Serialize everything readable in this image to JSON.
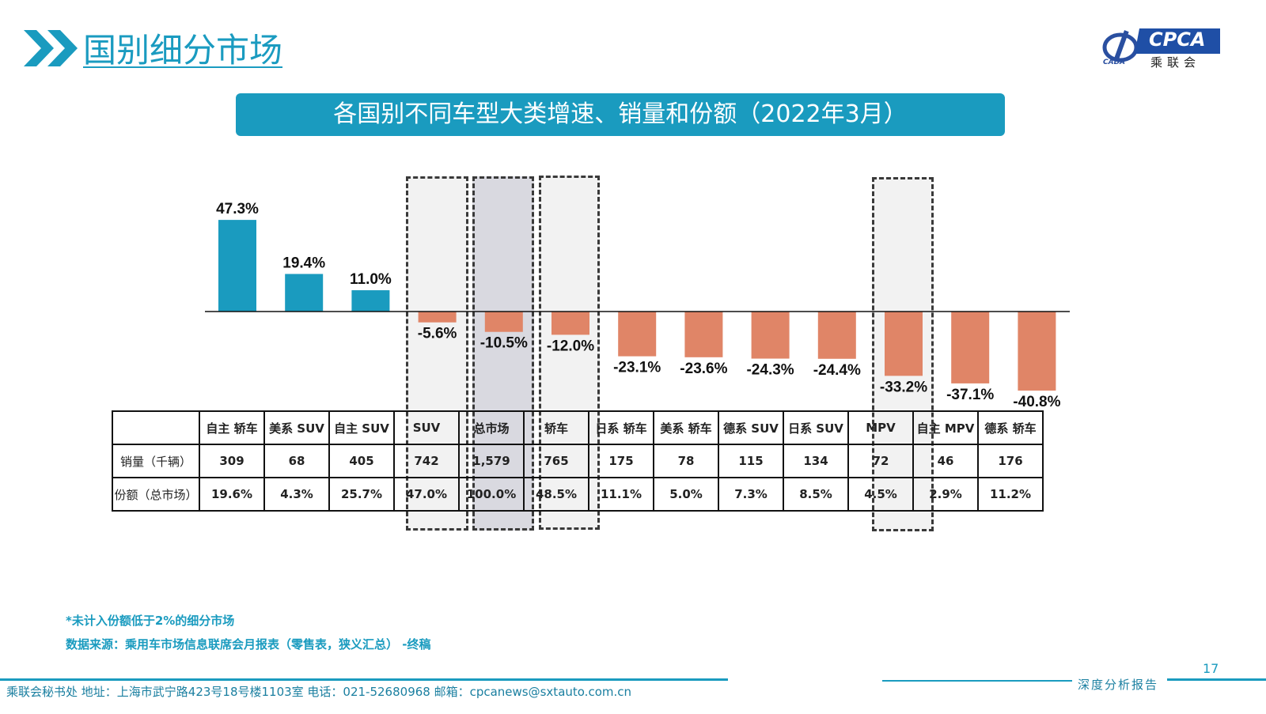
{
  "header": {
    "title": "国别细分市场",
    "logo_text": "CPCA",
    "logo_sub": "乘联会",
    "logo_small": "CADA"
  },
  "banner": "各国别不同车型大类增速、销量和份额（2022年3月）",
  "colors": {
    "accent": "#1a9bbf",
    "positive": "#1a9bbf",
    "negative": "#e08567",
    "highlight": "#d9d9e0"
  },
  "chart_data": {
    "type": "bar",
    "categories": [
      "自主 轿车",
      "美系 SUV",
      "自主 SUV",
      "SUV",
      "总市场",
      "轿车",
      "日系 轿车",
      "美系 轿车",
      "德系 SUV",
      "日系 SUV",
      "MPV",
      "自主 MPV",
      "德系 轿车"
    ],
    "values": [
      47.3,
      19.4,
      11.0,
      -5.6,
      -10.5,
      -12.0,
      -23.1,
      -23.6,
      -24.3,
      -24.4,
      -33.2,
      -37.1,
      -40.8
    ],
    "value_labels": [
      "47.3%",
      "19.4%",
      "11.0%",
      "-5.6%",
      "-10.5%",
      "-12.0%",
      "-23.1%",
      "-23.6%",
      "-24.3%",
      "-24.4%",
      "-33.2%",
      "-37.1%",
      "-40.8%"
    ],
    "highlighted": [
      "SUV",
      "总市场",
      "轿车",
      "MPV"
    ],
    "unit": "%",
    "xlabel": "",
    "ylabel": ""
  },
  "table": {
    "rows": [
      {
        "label": "销量（千辆）",
        "values": [
          "309",
          "68",
          "405",
          "742",
          "1,579",
          "765",
          "175",
          "78",
          "115",
          "134",
          "72",
          "46",
          "176"
        ]
      },
      {
        "label": "份额（总市场）",
        "values": [
          "19.6%",
          "4.3%",
          "25.7%",
          "47.0%",
          "100.0%",
          "48.5%",
          "11.1%",
          "5.0%",
          "7.3%",
          "8.5%",
          "4.5%",
          "2.9%",
          "11.2%"
        ]
      }
    ]
  },
  "notes": [
    "*未计入份额低于2%的细分市场",
    "数据来源：乘用车市场信息联席会月报表（零售表，狭义汇总） -终稿"
  ],
  "footer": "乘联会秘书处   地址：上海市武宁路423号18号楼1103室  电话：021-52680968   邮箱：cpcanews@sxtauto.com.cn",
  "report_label": "深度分析报告",
  "page_number": "17"
}
